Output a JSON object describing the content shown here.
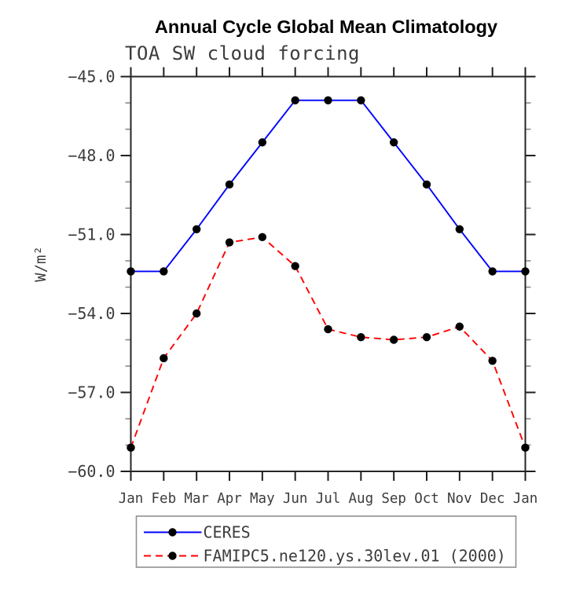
{
  "chart_data": {
    "type": "line",
    "title": "Annual Cycle Global Mean Climatology",
    "subtitle": "TOA SW cloud forcing",
    "ylabel": "W/m²",
    "xlabel": "",
    "categories": [
      "Jan",
      "Feb",
      "Mar",
      "Apr",
      "May",
      "Jun",
      "Jul",
      "Aug",
      "Sep",
      "Oct",
      "Nov",
      "Dec",
      "Jan"
    ],
    "ylim": [
      -60,
      -45
    ],
    "yticks_major": [
      -45,
      -48,
      -51,
      -54,
      -57,
      -60
    ],
    "ytick_labels": [
      "−45.0",
      "−48.0",
      "−51.0",
      "−54.0",
      "−57.0",
      "−60.0"
    ],
    "yticks_minor_step": 1,
    "grid": "off",
    "legend_position": "below",
    "series": [
      {
        "name": "CERES",
        "color": "#0000ff",
        "line_style": "solid",
        "marker": "black-dot",
        "values": [
          -52.4,
          -52.4,
          -50.8,
          -49.1,
          -47.5,
          -45.9,
          -45.9,
          -45.9,
          -47.5,
          -49.1,
          -50.8,
          -52.4,
          -52.4
        ]
      },
      {
        "name": "FAMIPC5.ne120.ys.30lev.01 (2000)",
        "color": "#ff0000",
        "line_style": "dashed",
        "marker": "black-dot",
        "values": [
          -59.1,
          -55.7,
          -54.0,
          -51.3,
          -51.1,
          -52.2,
          -54.6,
          -54.9,
          -55.0,
          -54.9,
          -54.5,
          -55.8,
          -59.1
        ]
      }
    ],
    "colors": {
      "frame": "#262626",
      "major_tick": "#1f1f1f",
      "minor_tick": "#8a8a8a",
      "tick_label": "#3c3c3c",
      "marker": "#000000",
      "legend_border": "#909090",
      "background": "#ffffff"
    }
  }
}
